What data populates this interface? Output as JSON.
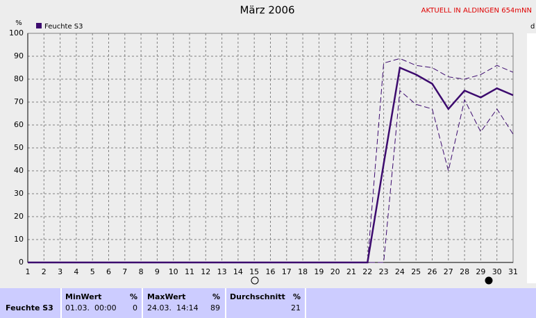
{
  "chart_data": {
    "type": "line",
    "title": "März 2006",
    "annotation": "AKTUELL IN ALDINGEN 654mNN",
    "y_label": "%",
    "x": [
      1,
      2,
      3,
      4,
      5,
      6,
      7,
      8,
      9,
      10,
      11,
      12,
      13,
      14,
      15,
      16,
      17,
      18,
      19,
      20,
      21,
      22,
      23,
      24,
      25,
      26,
      27,
      28,
      29,
      30,
      31
    ],
    "xlim": [
      1,
      31
    ],
    "xticks": [
      1,
      2,
      3,
      4,
      5,
      6,
      7,
      8,
      9,
      10,
      11,
      12,
      13,
      14,
      15,
      16,
      17,
      18,
      19,
      20,
      21,
      22,
      23,
      24,
      25,
      26,
      27,
      28,
      29,
      30,
      31
    ],
    "ylim": [
      0,
      100
    ],
    "yticks": [
      0,
      10,
      20,
      30,
      40,
      50,
      60,
      70,
      80,
      90,
      100
    ],
    "grid": true,
    "series": [
      {
        "name": "Feuchte S3",
        "color": "#3c0a6e",
        "dashed": false,
        "values": [
          0,
          0,
          0,
          0,
          0,
          0,
          0,
          0,
          0,
          0,
          0,
          0,
          0,
          0,
          0,
          0,
          0,
          0,
          0,
          0,
          0,
          0,
          43,
          85,
          82,
          78,
          67,
          75,
          72,
          76,
          73
        ]
      },
      {
        "color": "#3c0a6e",
        "dashed": true,
        "values": [
          0,
          0,
          0,
          0,
          0,
          0,
          0,
          0,
          0,
          0,
          0,
          0,
          0,
          0,
          0,
          0,
          0,
          0,
          0,
          0,
          0,
          0,
          87,
          89,
          86,
          85,
          81,
          80,
          82,
          86,
          83
        ]
      },
      {
        "color": "#3c0a6e",
        "dashed": true,
        "values": [
          0,
          0,
          0,
          0,
          0,
          0,
          0,
          0,
          0,
          0,
          0,
          0,
          0,
          0,
          0,
          0,
          0,
          0,
          0,
          0,
          0,
          0,
          0,
          75,
          69,
          67,
          40,
          71,
          57,
          67,
          56
        ]
      }
    ]
  },
  "stats": {
    "row_label": "Feuchte S3",
    "columns": [
      {
        "header": "MinWert",
        "unit": "%",
        "date": "01.03.  00:00",
        "value": 0
      },
      {
        "header": "MaxWert",
        "unit": "%",
        "date": "24.03.  14:14",
        "value": 89
      },
      {
        "header": "Durchschnitt",
        "unit": "%",
        "value": 21
      }
    ]
  }
}
